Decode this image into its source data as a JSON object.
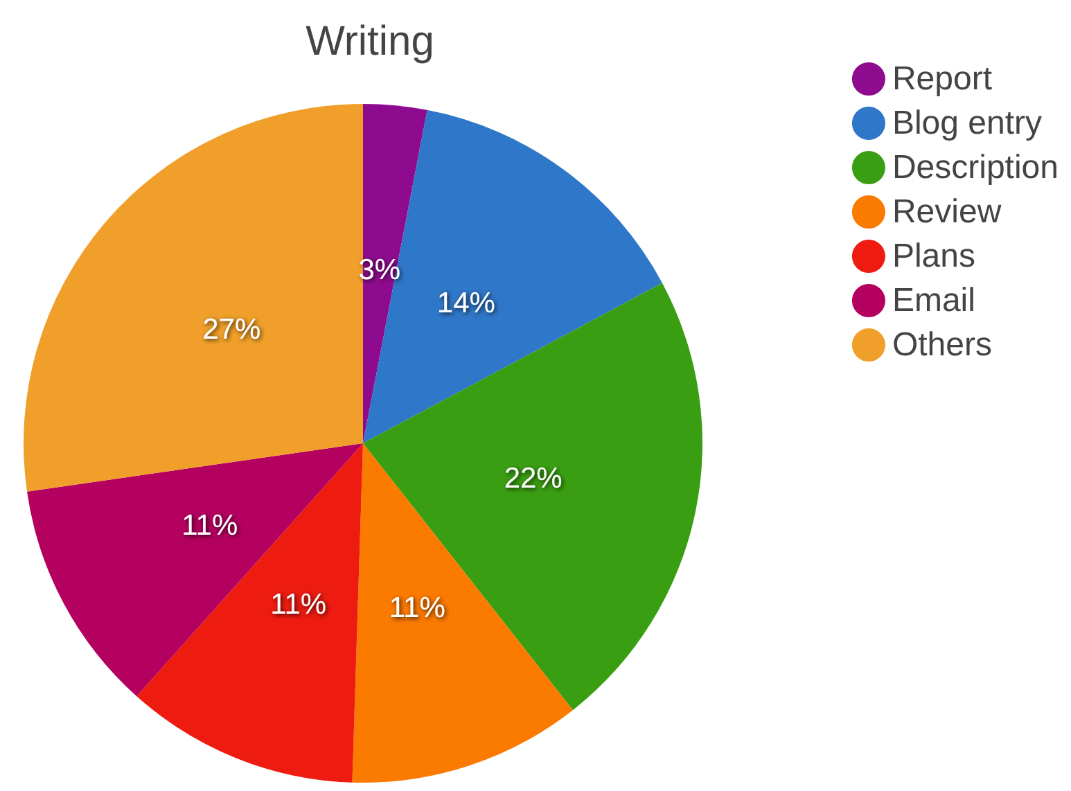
{
  "chart_data": {
    "type": "pie",
    "title": "Writing",
    "categories": [
      "Report",
      "Blog entry",
      "Description",
      "Review",
      "Plans",
      "Email",
      "Others"
    ],
    "values": [
      3,
      14,
      22,
      11,
      11,
      11,
      27
    ],
    "value_labels": [
      "3%",
      "14%",
      "22%",
      "11%",
      "11%",
      "11%",
      "27%"
    ],
    "colors": [
      "#8e0b8f",
      "#2f77c8",
      "#3a9e12",
      "#fb7a00",
      "#ee1b10",
      "#b4005f",
      "#f0a02a"
    ],
    "legend": "top right"
  }
}
